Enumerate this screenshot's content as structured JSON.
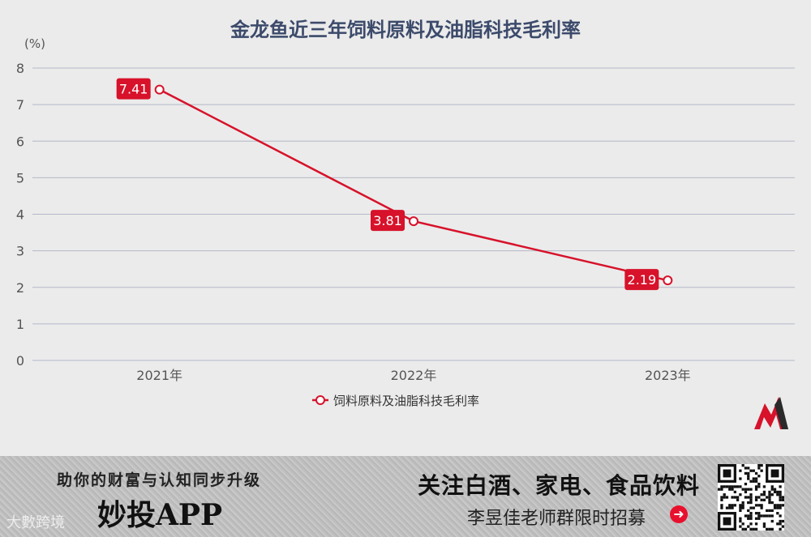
{
  "chart_data": {
    "type": "line",
    "title": "金龙鱼近三年饲料原料及油脂科技毛利率",
    "unit_label": "(%)",
    "categories": [
      "2021年",
      "2022年",
      "2023年"
    ],
    "series": [
      {
        "name": "饲料原料及油脂科技毛利率",
        "values": [
          7.41,
          3.81,
          2.19
        ],
        "labels": [
          "7.41",
          "3.81",
          "2.19"
        ]
      }
    ],
    "ylim": [
      0,
      8
    ],
    "yticks": [
      "0",
      "1",
      "2",
      "3",
      "4",
      "5",
      "6",
      "7",
      "8"
    ],
    "grid": true,
    "legend_position": "bottom",
    "colors": {
      "series": "#d7122a",
      "grid": "#b4b8c8",
      "title": "#3c4a6b"
    }
  },
  "footer": {
    "slogan": "助你的财富与认知同步升级",
    "app_name": "妙投APP",
    "watermark": "大數跨境",
    "promo": "关注白酒、家电、食品饮料",
    "sub_promo": "李昱佳老师群限时招募",
    "arrow_icon": "➜"
  }
}
